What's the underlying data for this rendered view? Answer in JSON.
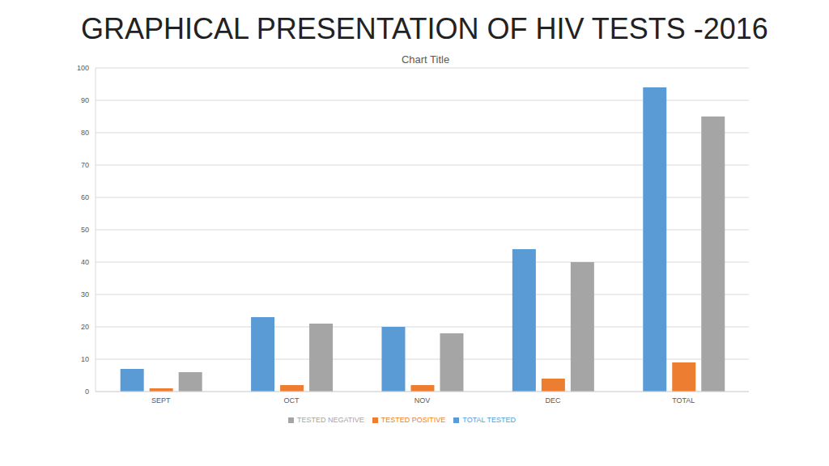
{
  "chart_data": {
    "type": "bar",
    "title": "GRAPHICAL PRESENTATION OF HIV TESTS -2016",
    "subtitle": "Chart Title",
    "categories": [
      "SEPT",
      "OCT",
      "NOV",
      "DEC",
      "TOTAL"
    ],
    "series": [
      {
        "name": "TOTAL TESTED",
        "color": "#5b9bd5",
        "values": [
          7,
          23,
          20,
          44,
          94
        ]
      },
      {
        "name": "TESTED POSITIVE",
        "color": "#ed7d31",
        "values": [
          1,
          2,
          2,
          4,
          9
        ]
      },
      {
        "name": "TESTED NEGATIVE",
        "color": "#a5a5a5",
        "values": [
          6,
          21,
          18,
          40,
          85
        ]
      }
    ],
    "ylim": [
      0,
      100
    ],
    "yticks": [
      0,
      10,
      20,
      30,
      40,
      50,
      60,
      70,
      80,
      90,
      100
    ],
    "grid": true,
    "legend": "bottom"
  }
}
